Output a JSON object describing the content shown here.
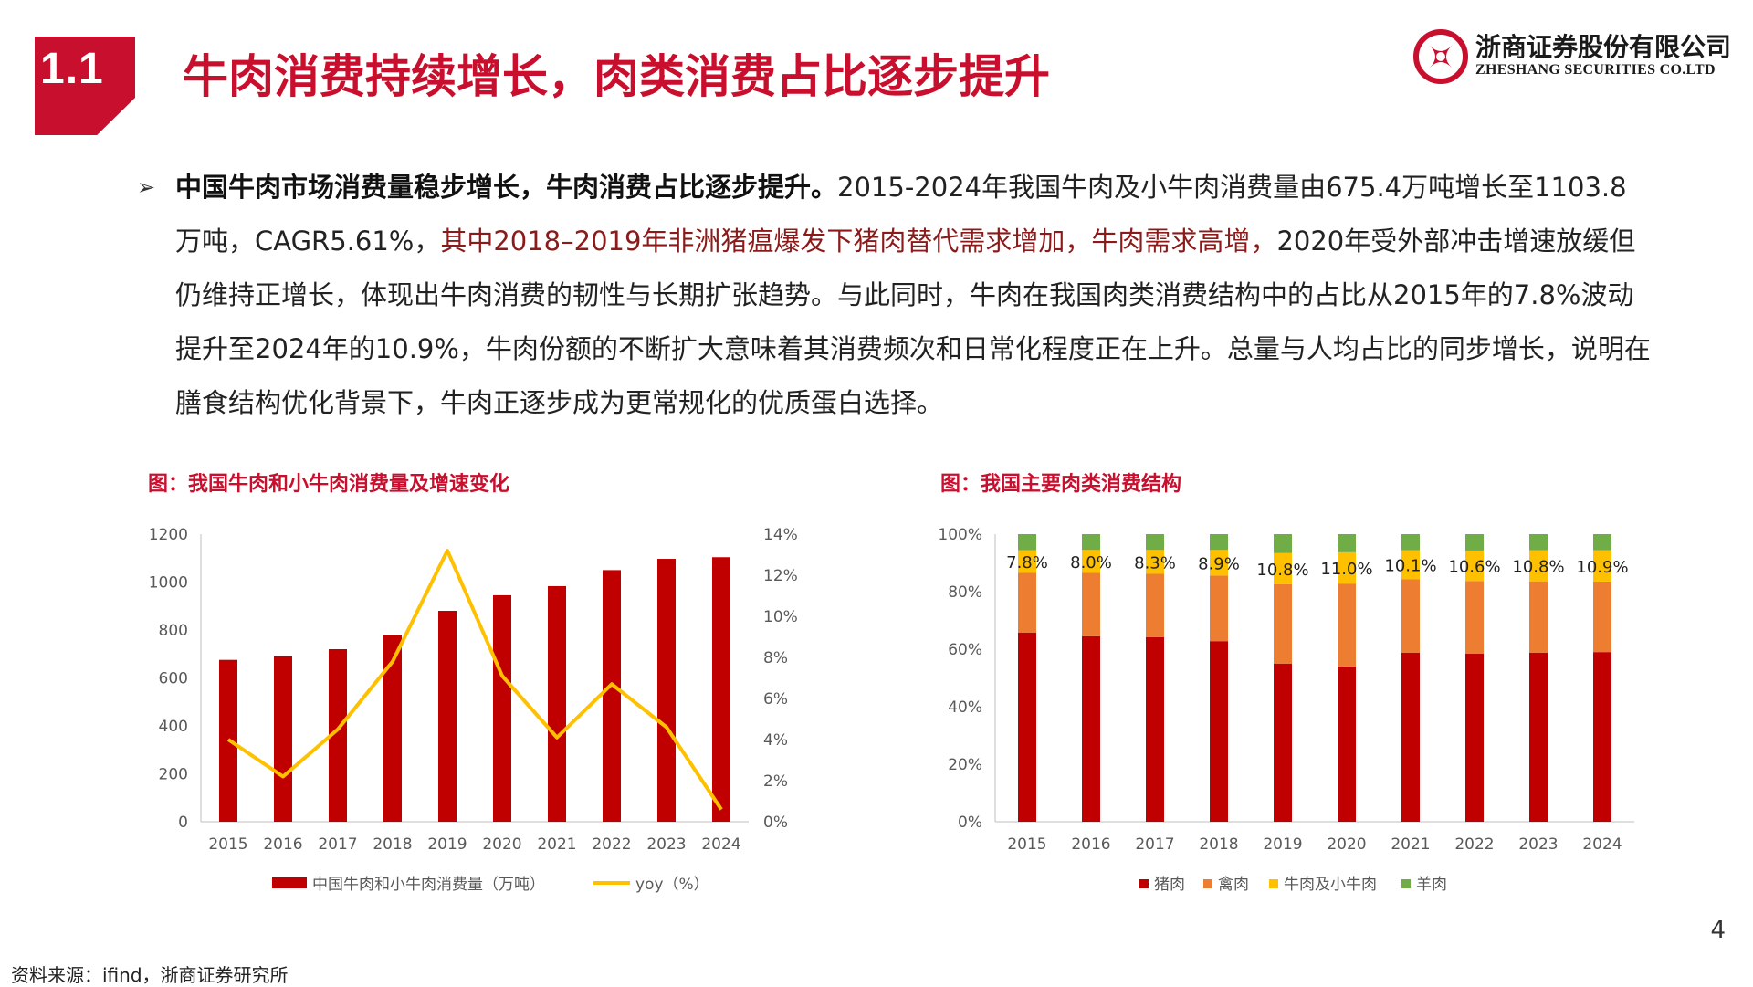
{
  "section": {
    "number": "1.1",
    "title": "牛肉消费持续增长，肉类消费占比逐步提升"
  },
  "logo": {
    "name_cn": "浙商证券股份有限公司",
    "name_en": "ZHESHANG SECURITIES CO.LTD",
    "accent": "#c8102e"
  },
  "body": {
    "bullet": "➢",
    "bold": "中国牛肉市场消费量稳步增长，牛肉消费占比逐步提升。",
    "text1": "2015-2024年我国牛肉及小牛肉消费量由675.4万吨增长至1103.8万吨，CAGR5.61%，",
    "highlight": "其中2018–2019年非洲猪瘟爆发下猪肉替代需求增加，牛肉需求高增，",
    "text2": "2020年受外部冲击增速放缓但仍维持正增长，体现出牛肉消费的韧性与长期扩张趋势。与此同时，牛肉在我国肉类消费结构中的占比从2015年的7.8%波动提升至2024年的10.9%，牛肉份额的不断扩大意味着其消费频次和日常化程度正在上升。总量与人均占比的同步增长，说明在膳食结构优化背景下，牛肉正逐步成为更常规化的优质蛋白选择。"
  },
  "figures": {
    "left_title": "图：我国牛肉和小牛肉消费量及增速变化",
    "right_title": "图：我国主要肉类消费结构"
  },
  "chart_data": [
    {
      "type": "bar",
      "title": "图：我国牛肉和小牛肉消费量及增速变化",
      "categories": [
        "2015",
        "2016",
        "2017",
        "2018",
        "2019",
        "2020",
        "2021",
        "2022",
        "2023",
        "2024"
      ],
      "series": [
        {
          "name": "中国牛肉和小牛肉消费量（万吨）",
          "type": "bar",
          "axis": "left",
          "color": "#c00000",
          "values": [
            675.4,
            690,
            720,
            778,
            880,
            945,
            983,
            1050,
            1097,
            1103.8
          ]
        },
        {
          "name": "yoy（%）",
          "type": "line",
          "axis": "right",
          "color": "#ffc000",
          "values": [
            4.0,
            2.2,
            4.5,
            7.8,
            13.2,
            7.1,
            4.1,
            6.7,
            4.6,
            0.6
          ]
        }
      ],
      "ylim": [
        0,
        1200
      ],
      "yticks": [
        "0",
        "200",
        "400",
        "600",
        "800",
        "1000",
        "1200"
      ],
      "y2lim": [
        0,
        14
      ],
      "y2ticks": [
        "0%",
        "2%",
        "4%",
        "6%",
        "8%",
        "10%",
        "12%",
        "14%"
      ],
      "legend": "bottom"
    },
    {
      "type": "bar",
      "stacked": true,
      "title": "图：我国主要肉类消费结构",
      "categories": [
        "2015",
        "2016",
        "2017",
        "2018",
        "2019",
        "2020",
        "2021",
        "2022",
        "2023",
        "2024"
      ],
      "series": [
        {
          "name": "猪肉",
          "color": "#c00000",
          "values": [
            65.8,
            64.5,
            64.2,
            62.8,
            55.0,
            54.0,
            58.8,
            58.5,
            58.8,
            59.0
          ]
        },
        {
          "name": "禽肉",
          "color": "#ed7d31",
          "values": [
            20.8,
            22.0,
            22.0,
            22.8,
            27.6,
            28.7,
            25.5,
            25.2,
            24.8,
            24.5
          ]
        },
        {
          "name": "牛肉及小牛肉",
          "color": "#ffc000",
          "values": [
            7.8,
            8.0,
            8.3,
            8.9,
            10.8,
            11.0,
            10.1,
            10.6,
            10.8,
            10.9
          ]
        },
        {
          "name": "羊肉",
          "color": "#70ad47",
          "values": [
            5.6,
            5.5,
            5.5,
            5.5,
            6.6,
            6.3,
            5.6,
            5.7,
            5.6,
            5.6
          ]
        }
      ],
      "data_labels": [
        "7.8%",
        "8.0%",
        "8.3%",
        "8.9%",
        "10.8%",
        "11.0%",
        "10.1%",
        "10.6%",
        "10.8%",
        "10.9%"
      ],
      "ylim": [
        0,
        100
      ],
      "yticks": [
        "0%",
        "20%",
        "40%",
        "60%",
        "80%",
        "100%"
      ],
      "legend": "bottom"
    }
  ],
  "page_number": "4",
  "source": "资料来源：ifind，浙商证券研究所"
}
